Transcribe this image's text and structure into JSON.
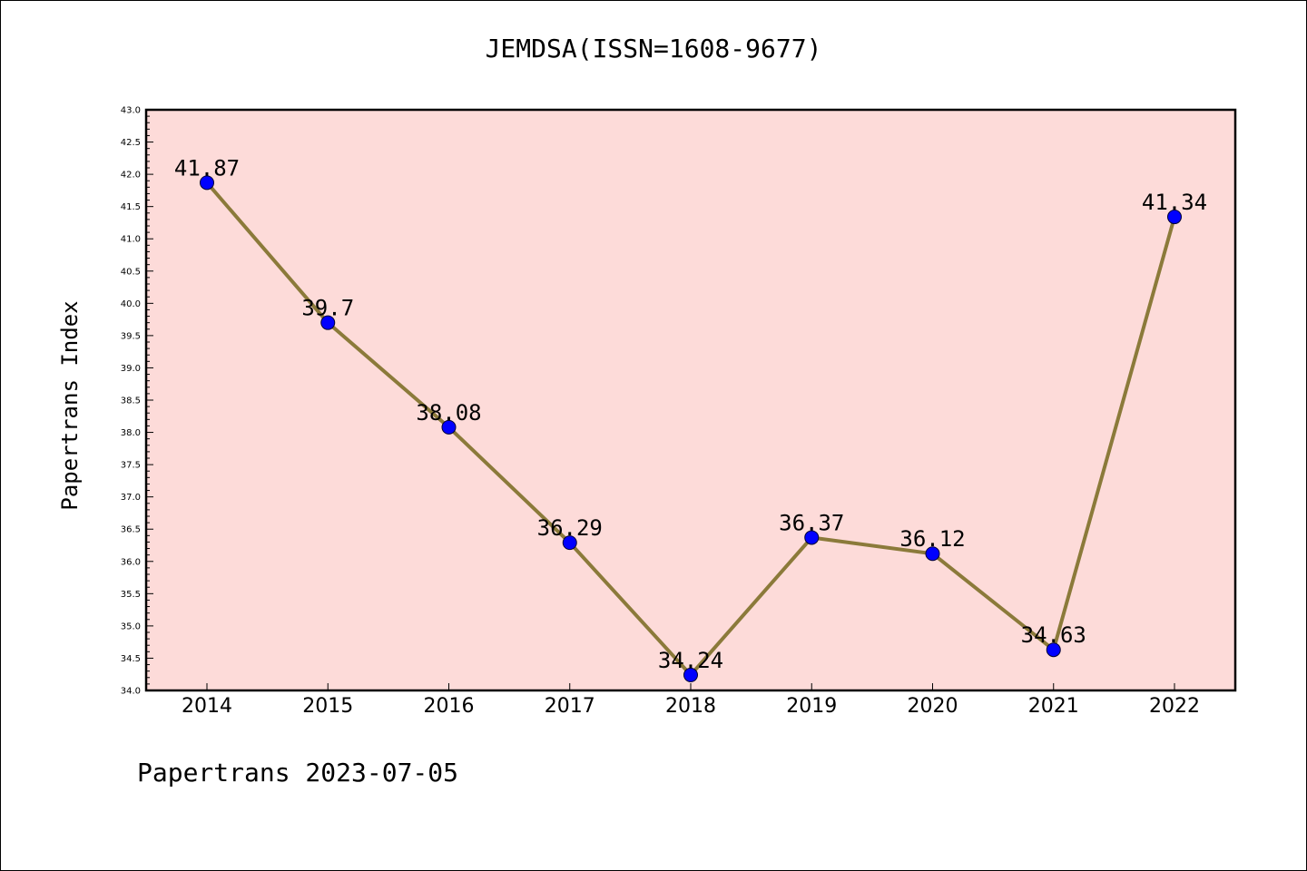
{
  "chart_data": {
    "type": "line",
    "title": "JEMDSA(ISSN=1608-9677)",
    "ylabel": "Papertrans Index",
    "xlabel": "",
    "categories": [
      "2014",
      "2015",
      "2016",
      "2017",
      "2018",
      "2019",
      "2020",
      "2021",
      "2022"
    ],
    "series": [
      {
        "values": [
          41.87,
          39.7,
          38.08,
          36.29,
          34.24,
          36.37,
          36.12,
          34.63,
          41.34
        ],
        "data_labels": [
          "41.87",
          "39.7",
          "38.08",
          "36.29",
          "34.24",
          "36.37",
          "36.12",
          "34.63",
          "41.34"
        ]
      }
    ],
    "ylim": [
      34.0,
      43.0
    ],
    "yticks": [
      "34.0",
      "34.5",
      "35.0",
      "35.5",
      "36.0",
      "36.5",
      "37.0",
      "37.5",
      "38.0",
      "38.5",
      "39.0",
      "39.5",
      "40.0",
      "40.5",
      "41.0",
      "41.5",
      "42.0",
      "42.5",
      "43.0"
    ],
    "grid": false,
    "legend": "none",
    "colors": {
      "plot_background": "#fddbd9",
      "line": "#8b7a3a",
      "marker": "#0000ff",
      "axes": "#000000"
    }
  },
  "footer": {
    "text": "Papertrans 2023-07-05"
  }
}
